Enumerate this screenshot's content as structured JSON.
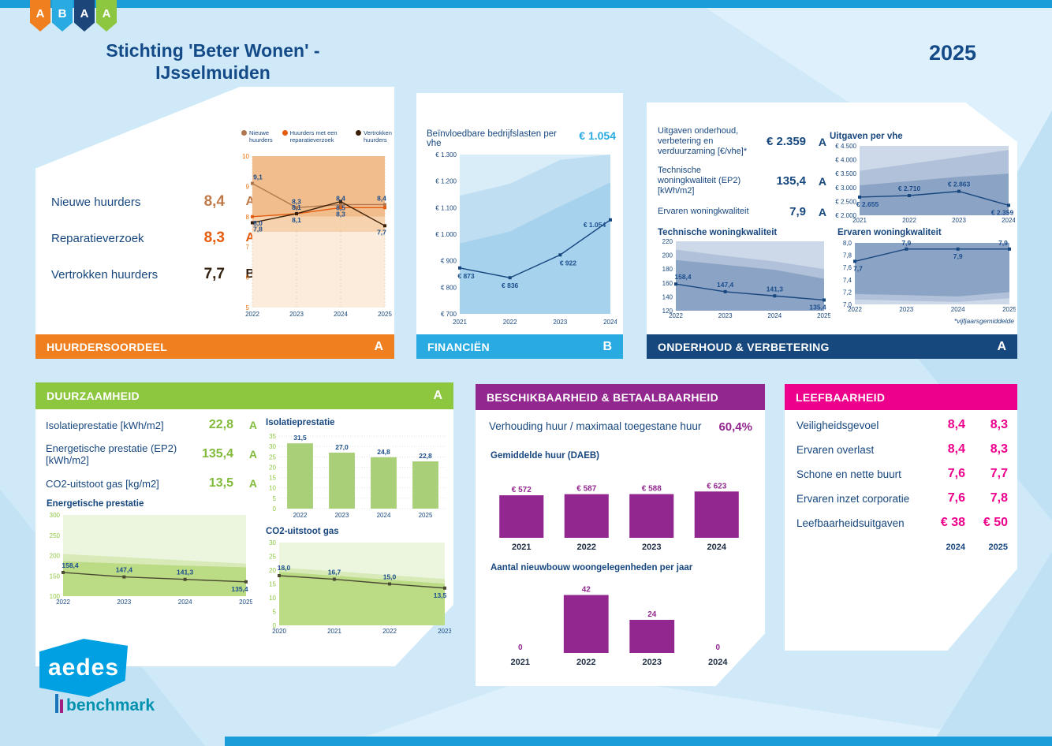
{
  "header": {
    "badges": [
      {
        "letter": "A",
        "color": "#f0801f"
      },
      {
        "letter": "B",
        "color": "#29abe2"
      },
      {
        "letter": "A",
        "color": "#1c4679"
      },
      {
        "letter": "A",
        "color": "#8dc63f"
      }
    ],
    "title_line1": "Stichting 'Beter Wonen' -",
    "title_line2": "IJsselmuiden",
    "year": "2025"
  },
  "colors": {
    "accent_blue": "#1b9dd9",
    "orange": "#f0801f",
    "cyan": "#29abe2",
    "navy": "#16487e",
    "green": "#8dc63f",
    "purple": "#92278f",
    "pink": "#ec008c"
  },
  "panels": {
    "huurdersoordeel": {
      "title": "HUURDERSOORDEEL",
      "grade": "A",
      "metrics": [
        {
          "label": "Nieuwe huurders",
          "value": "8,4",
          "grade": "A"
        },
        {
          "label": "Reparatieverzoek",
          "value": "8,3",
          "grade": "A"
        },
        {
          "label": "Vertrokken huurders",
          "value": "7,7",
          "grade": "B"
        }
      ]
    },
    "financien": {
      "title": "FINANCIËN",
      "grade": "B",
      "metric_value": "€ 1.054"
    },
    "onderhoud": {
      "title": "ONDERHOUD & VERBETERING",
      "grade": "A",
      "metrics": [
        {
          "label": "Uitgaven onderhoud, verbetering en verduurzaming [€/vhe]*",
          "value": "€ 2.359",
          "grade": "A"
        },
        {
          "label": "Technische woningkwaliteit (EP2) [kWh/m2]",
          "value": "135,4",
          "grade": "A"
        },
        {
          "label": "Ervaren woningkwaliteit",
          "value": "7,9",
          "grade": "A"
        }
      ],
      "footnote": "*vijfjaarsgemiddelde"
    },
    "duurzaamheid": {
      "title": "DUURZAAMHEID",
      "grade": "A",
      "metrics": [
        {
          "label": "Isolatieprestatie [kWh/m2]",
          "value": "22,8",
          "grade": "A"
        },
        {
          "label": "Energetische prestatie (EP2) [kWh/m2]",
          "value": "135,4",
          "grade": "A"
        },
        {
          "label": "CO2-uitstoot gas [kg/m2]",
          "value": "13,5",
          "grade": "A"
        }
      ]
    },
    "beschikbaarheid": {
      "title": "BESCHIKBAARHEID & BETAALBAARHEID",
      "metric_label": "Verhouding huur / maximaal toegestane huur",
      "metric_value": "60,4%"
    },
    "leefbaarheid": {
      "title": "LEEFBAARHEID",
      "metrics": [
        {
          "label": "Veiligheidsgevoel",
          "v1": "8,4",
          "v2": "8,3"
        },
        {
          "label": "Ervaren overlast",
          "v1": "8,4",
          "v2": "8,3"
        },
        {
          "label": "Schone en nette buurt",
          "v1": "7,6",
          "v2": "7,7"
        },
        {
          "label": "Ervaren inzet corporatie",
          "v1": "7,6",
          "v2": "7,8"
        },
        {
          "label": "Leefbaarheidsuitgaven",
          "v1": "€ 38",
          "v2": "€ 50"
        }
      ],
      "col_years": [
        "2024",
        "2025"
      ]
    }
  },
  "footer": {
    "logo_text": "aedes",
    "logo_sub": "benchmark"
  },
  "chart_data": [
    {
      "id": "huurdersoordeel",
      "type": "line",
      "x": [
        "2022",
        "2023",
        "2024",
        "2025"
      ],
      "ylim": [
        5,
        10
      ],
      "yticks": {
        "values": [
          5,
          6,
          7,
          8,
          9,
          10
        ],
        "labels": [
          "5",
          "6",
          "7",
          "8",
          "9",
          "10"
        ]
      },
      "ytick_color": "#e8700a",
      "vgrid": true,
      "pad": {
        "l": 16,
        "r": 10,
        "t": 6,
        "b": 14
      },
      "bands": [
        {
          "color": "#fcecdc",
          "lo": 5,
          "top": 7.5
        },
        {
          "color": "#f7d2ae",
          "lo": 7.5,
          "top": 8
        },
        {
          "color": "#f2bd8c",
          "lo": 8,
          "top": 10
        }
      ],
      "legend": [
        {
          "label": "Nieuwe huurders",
          "color": "#b0774f"
        },
        {
          "label": "Huurders met een reparatieverzoek",
          "color": "#e55c0e"
        },
        {
          "label": "Vertrokken huurders",
          "color": "#3a1f06"
        }
      ],
      "series": [
        {
          "name": "Nieuwe huurders",
          "color": "#b0774f",
          "values": [
            9.1,
            8.3,
            8.4,
            8.4
          ],
          "labels": [
            "9,1",
            "8,3",
            "8,4",
            "8,4"
          ],
          "ldy": [
            -5,
            -5,
            -5,
            -5
          ],
          "ldx": [
            7,
            0,
            0,
            -4
          ]
        },
        {
          "name": "Huurders met een reparatieverzoek",
          "color": "#e55c0e",
          "values": [
            8.0,
            8.1,
            8.3,
            8.3
          ],
          "labels": [
            "8,0",
            "8,1",
            "8,3",
            ""
          ],
          "ldy": [
            11,
            -5,
            11,
            0
          ],
          "ldx": [
            7,
            0,
            0,
            0
          ]
        },
        {
          "name": "Vertrokken huurders",
          "color": "#3a1f06",
          "values": [
            7.8,
            8.1,
            8.5,
            7.7
          ],
          "labels": [
            "7,8",
            "8,1",
            "8,5",
            "7,7"
          ],
          "ldy": [
            11,
            11,
            11,
            11
          ],
          "ldx": [
            7,
            0,
            0,
            -4
          ]
        }
      ]
    },
    {
      "id": "financien",
      "type": "line",
      "title": "Beïnvloedbare bedrijfslasten per vhe",
      "x": [
        "2021",
        "2022",
        "2023",
        "2024"
      ],
      "ylim": [
        700,
        1300
      ],
      "yticks": {
        "values": [
          700,
          800,
          900,
          1000,
          1100,
          1200,
          1300
        ],
        "labels": [
          "€ 700",
          "€ 800",
          "€ 900",
          "€ 1.000",
          "€ 1.100",
          "€ 1.200",
          "€ 1.300"
        ]
      },
      "pad": {
        "l": 44,
        "r": 8,
        "t": 6,
        "b": 16
      },
      "bg": "#d9edf9",
      "bands": [
        {
          "color": "#bfdef2",
          "lo": 700,
          "top": [
            1145,
            1190,
            1280,
            1320
          ]
        },
        {
          "color": "#a6d2ee",
          "lo": 700,
          "top": [
            965,
            1010,
            1105,
            1195
          ]
        }
      ],
      "series": [
        {
          "name": "Beïnvloedbare bedrijfslasten per vhe",
          "color": "#17477e",
          "values": [
            873,
            836,
            922,
            1054
          ],
          "labels": [
            "€ 873",
            "€ 836",
            "€ 922",
            "€ 1.054"
          ],
          "ldy": [
            13,
            13,
            13,
            9
          ],
          "ldx": [
            8,
            0,
            10,
            -20
          ]
        }
      ]
    },
    {
      "id": "uitgaven",
      "type": "line",
      "title": "Uitgaven per vhe",
      "x": [
        "2021",
        "2022",
        "2023",
        "2024"
      ],
      "ylim": [
        2000,
        4500
      ],
      "yticks": {
        "values": [
          2000,
          2500,
          3000,
          3500,
          4000,
          4500
        ],
        "labels": [
          "€ 2.000",
          "€ 2.500",
          "€ 3.000",
          "€ 3.500",
          "€ 4.000",
          "€ 4.500"
        ]
      },
      "pad": {
        "l": 40,
        "r": 8,
        "t": 4,
        "b": 12
      },
      "bg": "#cdd9e9",
      "bands": [
        {
          "color": "#b0c1d9",
          "lo": 2000,
          "top": [
            3600,
            3850,
            4100,
            4350
          ]
        },
        {
          "color": "#8ba3c5",
          "lo": 2000,
          "top": [
            3080,
            3230,
            3390,
            3500
          ]
        }
      ],
      "series": [
        {
          "name": "Uitgaven per vhe",
          "color": "#17477e",
          "values": [
            2655,
            2710,
            2863,
            2359
          ],
          "labels": [
            "€ 2.655",
            "€ 2.710",
            "€ 2.863",
            "€ 2.359"
          ],
          "ldy": [
            12,
            -6,
            -6,
            12
          ],
          "ldx": [
            10,
            0,
            0,
            -8
          ]
        }
      ]
    },
    {
      "id": "technische",
      "type": "line",
      "title": "Technische woningkwaliteit",
      "x": [
        "2022",
        "2023",
        "2024",
        "2025"
      ],
      "ylim": [
        120,
        220
      ],
      "yticks": {
        "values": [
          120,
          140,
          160,
          180,
          200,
          220
        ],
        "labels": [
          "120",
          "140",
          "160",
          "180",
          "200",
          "220"
        ]
      },
      "pad": {
        "l": 24,
        "r": 8,
        "t": 4,
        "b": 12
      },
      "bg": "#cdd9e9",
      "bands": [
        {
          "color": "#b0c1d9",
          "lo": 120,
          "top": [
            208,
            199,
            191,
            180
          ]
        },
        {
          "color": "#8ba3c5",
          "lo": 120,
          "top": [
            193,
            186,
            179,
            166
          ]
        }
      ],
      "series": [
        {
          "name": "Technische woningkwaliteit",
          "color": "#17477e",
          "values": [
            158.4,
            147.4,
            141.3,
            135.4
          ],
          "labels": [
            "158,4",
            "147,4",
            "141,3",
            "135,4"
          ],
          "ldy": [
            -6,
            -6,
            -6,
            12
          ],
          "ldx": [
            9,
            0,
            0,
            -8
          ]
        }
      ]
    },
    {
      "id": "ervaren",
      "type": "line",
      "title": "Ervaren woningkwaliteit",
      "x": [
        "2022",
        "2023",
        "2024",
        "2025"
      ],
      "ylim": [
        7,
        8
      ],
      "yticks": {
        "values": [
          7,
          7.2,
          7.4,
          7.6,
          7.8,
          8
        ],
        "labels": [
          "7,0",
          "7,2",
          "7,4",
          "7,6",
          "7,8",
          "8,0"
        ]
      },
      "pad": {
        "l": 24,
        "r": 8,
        "t": 6,
        "b": 12
      },
      "bg": "#8ba3c5",
      "bands": [
        {
          "color": "#b0c1d9",
          "lo": 7,
          "top": [
            7.17,
            7.15,
            7.13,
            7.2
          ]
        },
        {
          "color": "#cdd9e9",
          "lo": 7,
          "top": [
            7.08,
            7.06,
            7.04,
            7.1
          ]
        }
      ],
      "series": [
        {
          "name": "Ervaren woningkwaliteit",
          "color": "#17477e",
          "values": [
            7.7,
            7.9,
            7.9,
            7.9
          ],
          "labels": [
            "7,7",
            "7,9",
            "7,9",
            "7,9"
          ],
          "ldy": [
            12,
            -5,
            12,
            -5
          ],
          "ldx": [
            4,
            0,
            0,
            -8
          ]
        }
      ]
    },
    {
      "id": "isolatie",
      "type": "bar",
      "title": "Isolatieprestatie",
      "x": [
        "2022",
        "2023",
        "2024",
        "2025"
      ],
      "ylim": [
        0,
        35
      ],
      "yticks": {
        "values": [
          0,
          5,
          10,
          15,
          20,
          25,
          30,
          35
        ],
        "labels": [
          "0",
          "5",
          "10",
          "15",
          "20",
          "25",
          "30",
          "35"
        ]
      },
      "ytick_color": "#8cc63f",
      "grid": true,
      "pad": {
        "l": 20,
        "r": 6,
        "t": 8,
        "b": 14
      },
      "color": "#a9cf78",
      "label_color": "#1b4e8c",
      "bar_ratio": 0.62,
      "values": [
        31.5,
        27.0,
        24.8,
        22.8
      ],
      "labels": [
        "31,5",
        "27,0",
        "24,8",
        "22,8"
      ]
    },
    {
      "id": "energetische",
      "type": "line",
      "title": "Energetische prestatie",
      "x": [
        "2022",
        "2023",
        "2024",
        "2025"
      ],
      "ylim": [
        100,
        300
      ],
      "yticks": {
        "values": [
          100,
          150,
          200,
          250,
          300
        ],
        "labels": [
          "100",
          "150",
          "200",
          "250",
          "300"
        ]
      },
      "ytick_color": "#8cc63f",
      "pad": {
        "l": 24,
        "r": 8,
        "t": 6,
        "b": 13
      },
      "bg": "#ecf6de",
      "bands": [
        {
          "color": "#d7eab8",
          "lo": 100,
          "top": [
            204,
            196,
            188,
            180
          ]
        },
        {
          "color": "#bcdb85",
          "lo": 100,
          "top": [
            186,
            180,
            175,
            171
          ]
        }
      ],
      "series": [
        {
          "name": "Energetische prestatie",
          "color": "#4a4a33",
          "values": [
            158.4,
            147.4,
            141.3,
            135.4
          ],
          "labels": [
            "158,4",
            "147,4",
            "141,3",
            "135,4"
          ],
          "ldy": [
            -6,
            -6,
            -6,
            12
          ],
          "ldx": [
            9,
            0,
            0,
            -8
          ]
        }
      ]
    },
    {
      "id": "co2",
      "type": "line",
      "title": "CO2-uitstoot gas",
      "x": [
        "2020",
        "2021",
        "2022",
        "2023"
      ],
      "ylim": [
        0,
        30
      ],
      "yticks": {
        "values": [
          0,
          5,
          10,
          15,
          20,
          25,
          30
        ],
        "labels": [
          "0",
          "5",
          "10",
          "15",
          "20",
          "25",
          "30"
        ]
      },
      "ytick_color": "#8cc63f",
      "pad": {
        "l": 20,
        "r": 8,
        "t": 6,
        "b": 13
      },
      "bg": "#ecf6de",
      "bands": [
        {
          "color": "#d7eab8",
          "lo": 0,
          "top": [
            21,
            19.6,
            18.2,
            16.8
          ]
        },
        {
          "color": "#bcdb85",
          "lo": 0,
          "top": [
            19.4,
            18,
            16.5,
            15.1
          ]
        }
      ],
      "series": [
        {
          "name": "CO2-uitstoot gas",
          "color": "#4a4a33",
          "values": [
            18.0,
            16.7,
            15.0,
            13.5
          ],
          "labels": [
            "18,0",
            "16,7",
            "15,0",
            "13,5"
          ],
          "ldy": [
            -7,
            -6,
            -6,
            12
          ],
          "ldx": [
            6,
            0,
            0,
            -6
          ]
        }
      ]
    },
    {
      "id": "huur",
      "type": "bar",
      "title": "Gemiddelde huur (DAEB)",
      "x": [
        "2021",
        "2022",
        "2023",
        "2024"
      ],
      "ylim": [
        0,
        700
      ],
      "pad": {
        "l": 2,
        "r": 2,
        "t": 14,
        "b": 18
      },
      "color": "#92278f",
      "label_color": "#92278f",
      "big_x": true,
      "bar_ratio": 0.68,
      "values": [
        572,
        587,
        588,
        623
      ],
      "labels": [
        "€ 572",
        "€ 587",
        "€ 588",
        "€ 623"
      ]
    },
    {
      "id": "nieuwbouw",
      "type": "bar",
      "title": "Aantal nieuwbouw woongelegenheden per jaar",
      "x": [
        "2021",
        "2022",
        "2023",
        "2024"
      ],
      "ylim": [
        0,
        48
      ],
      "pad": {
        "l": 2,
        "r": 2,
        "t": 14,
        "b": 18
      },
      "color": "#92278f",
      "label_color": "#92278f",
      "big_x": true,
      "bar_ratio": 0.68,
      "values": [
        0,
        42,
        24,
        0
      ],
      "labels": [
        "0",
        "42",
        "24",
        "0"
      ]
    }
  ]
}
